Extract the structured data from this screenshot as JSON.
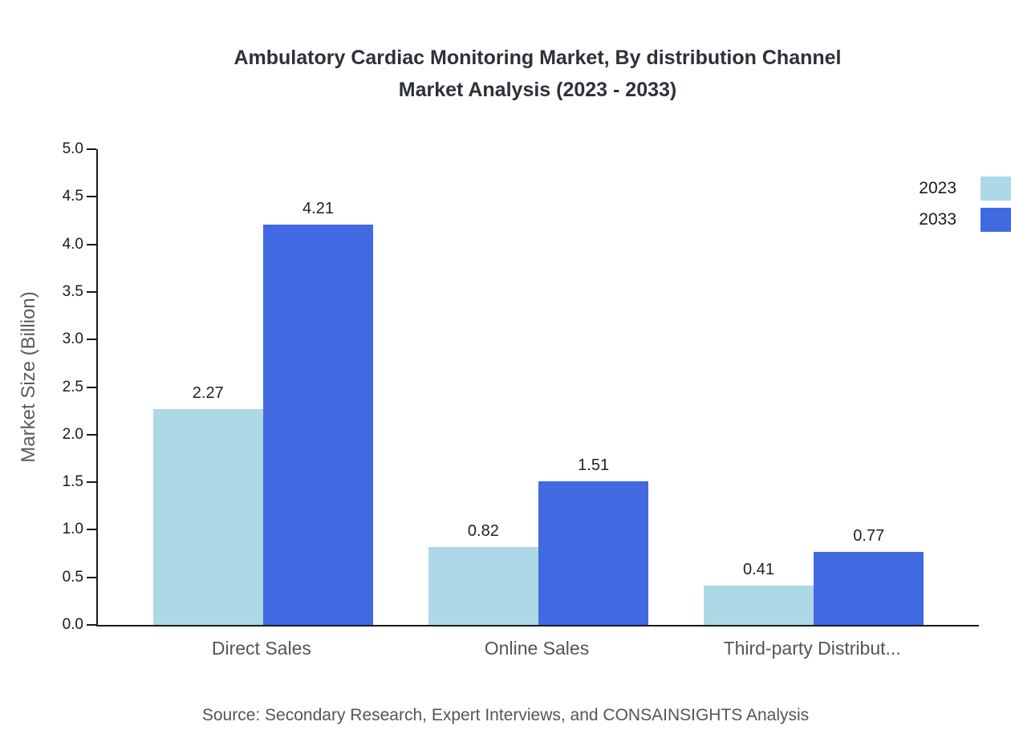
{
  "chart_data": {
    "type": "bar",
    "title_line1": "Ambulatory Cardiac Monitoring Market, By distribution Channel",
    "title_line2": "Market Analysis (2023 - 2033)",
    "ylabel": "Market Size (Billion)",
    "categories": [
      "Direct Sales",
      "Online Sales",
      "Third-party Distribut..."
    ],
    "series": [
      {
        "name": "2023",
        "color": "#ADD8E6",
        "values": [
          2.27,
          0.82,
          0.41
        ]
      },
      {
        "name": "2033",
        "color": "#4169E1",
        "values": [
          4.21,
          1.51,
          0.77
        ]
      }
    ],
    "ylim": [
      0,
      5
    ],
    "ytick_step": 0.5,
    "grid": false,
    "legend_position": "top-right"
  },
  "source_note": "Source: Secondary Research, Expert Interviews, and CONSAINSIGHTS Analysis"
}
